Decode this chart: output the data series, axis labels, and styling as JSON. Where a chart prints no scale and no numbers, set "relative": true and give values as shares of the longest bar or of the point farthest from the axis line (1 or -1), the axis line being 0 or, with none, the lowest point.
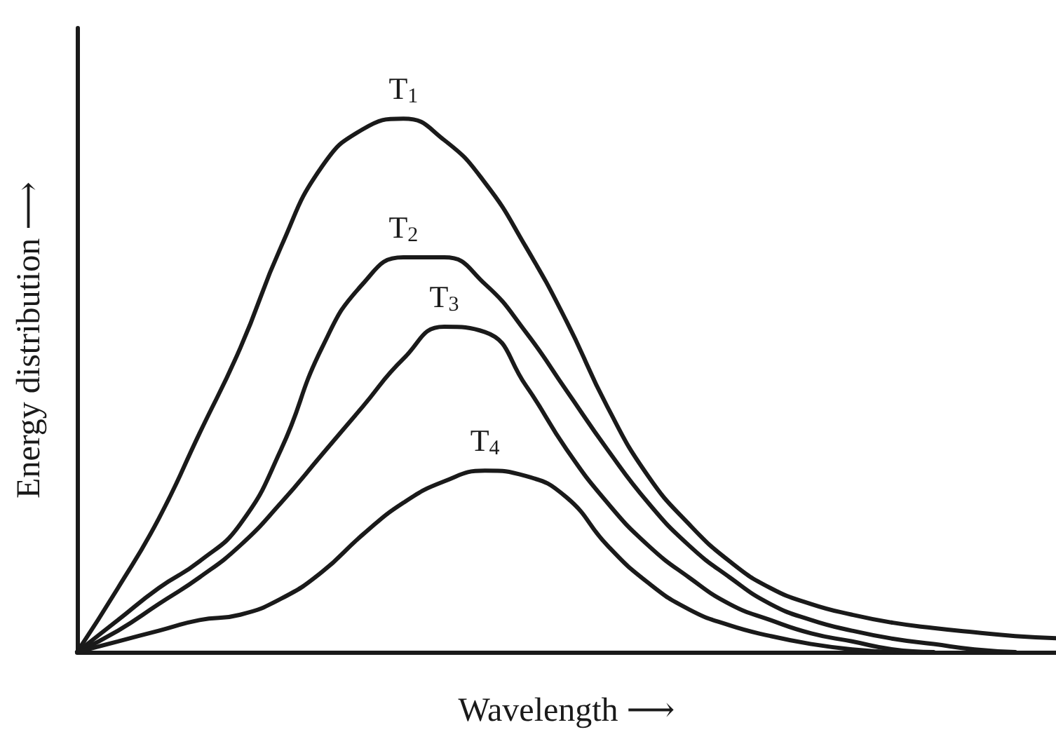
{
  "chart_data": {
    "type": "line",
    "xlabel": "Wavelength ⟶",
    "ylabel": "Energy distribution ⟶",
    "relative": true,
    "tick_labels": false,
    "marker": "none",
    "line_style": "solid",
    "categories": [
      null,
      null,
      null,
      null,
      null,
      null,
      null,
      null,
      null,
      null,
      null,
      null,
      null,
      null,
      null,
      null,
      null,
      null,
      null,
      null,
      null,
      null,
      null,
      null,
      null
    ],
    "series": [
      {
        "name": "T$_{1}$",
        "color": "#1a1a1a",
        "values": [
          0,
          0.12,
          0.25,
          0.41,
          0.57,
          0.76,
          0.91,
          0.98,
          1,
          0.96,
          0.88,
          0.76,
          0.62,
          0.46,
          0.33,
          0.24,
          0.17,
          0.12,
          0.09,
          0.07,
          0.055,
          0.045,
          0.037,
          0.03,
          0.026
        ]
      },
      {
        "name": "T$_{2}$",
        "color": "#1a1a1a",
        "values": [
          0,
          0.06,
          0.12,
          0.17,
          0.24,
          0.38,
          0.57,
          0.69,
          0.74,
          0.74,
          0.69,
          0.6,
          0.49,
          0.38,
          0.28,
          0.2,
          0.14,
          0.09,
          0.06,
          0.04,
          0.025,
          0.015,
          0.005,
          0,
          null
        ]
      },
      {
        "name": "T$_{3}$",
        "color": "#1a1a1a",
        "values": [
          0,
          0.04,
          0.09,
          0.14,
          0.2,
          0.28,
          0.37,
          0.46,
          0.55,
          0.61,
          0.6,
          0.5,
          0.38,
          0.28,
          0.2,
          0.14,
          0.09,
          0.06,
          0.035,
          0.02,
          0.005,
          0,
          null,
          null,
          null
        ]
      },
      {
        "name": "T$_{4}$",
        "color": "#1a1a1a",
        "values": [
          0,
          0.02,
          0.04,
          0.06,
          0.07,
          0.1,
          0.15,
          0.22,
          0.28,
          0.32,
          0.34,
          0.33,
          0.29,
          0.2,
          0.13,
          0.08,
          0.05,
          0.03,
          0.015,
          0.005,
          0,
          null,
          null,
          null,
          null
        ]
      }
    ]
  }
}
